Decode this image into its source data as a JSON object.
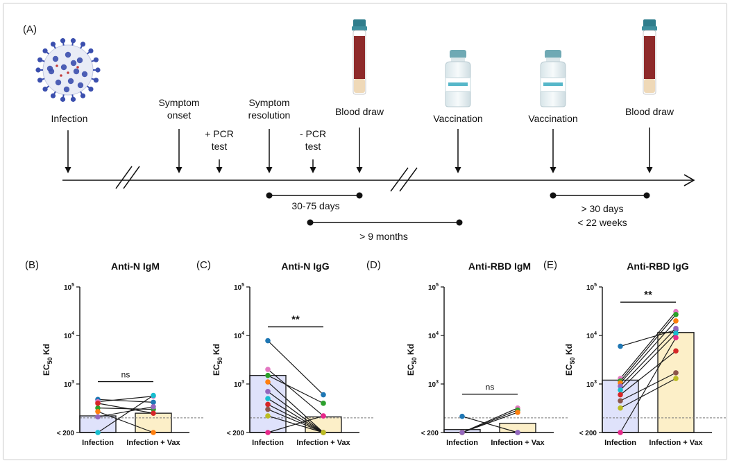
{
  "timeline": {
    "panel_label": "(A)",
    "events": [
      {
        "label": "Infection"
      },
      {
        "label": "Symptom\nonset"
      },
      {
        "label": "+ PCR\ntest"
      },
      {
        "label": "Symptom\nresolution"
      },
      {
        "label": "- PCR\ntest"
      },
      {
        "label": "Blood draw"
      },
      {
        "label": "Vaccination"
      },
      {
        "label": "Vaccination"
      },
      {
        "label": "Blood draw"
      }
    ],
    "intervals": [
      {
        "label": "30-75 days"
      },
      {
        "label": "> 9 months"
      },
      {
        "label": "> 30 days\n< 22 weeks"
      }
    ]
  },
  "colors": {
    "infection_bar": "#dfe2fb",
    "vax_bar": "#fcefc8",
    "virus": "#3b4fae",
    "blood": "#8e2a2a",
    "tube_cap": "#2f7d8c",
    "vial_cap": "#6fa9b4",
    "vial_label": "#56b7c9",
    "point_colors": [
      "#1f77b4",
      "#e377c2",
      "#2ca02c",
      "#ff7f0e",
      "#9467bd",
      "#17becf",
      "#d62728",
      "#8c564b",
      "#bcbd22",
      "#e7298a"
    ]
  },
  "chart_data": [
    {
      "panel": "(B)",
      "type": "bar",
      "title": "Anti-N IgM",
      "ylabel": "EC50 Kd",
      "ylabel_main": "EC",
      "ylabel_sub": "50",
      "ylabel_tail": " Kd",
      "yscale": "log",
      "ylim": [
        100,
        100000
      ],
      "yticks": [
        {
          "value": 100,
          "label": "< 200"
        },
        {
          "value": 1000,
          "base": "10",
          "exp": "3"
        },
        {
          "value": 10000,
          "base": "10",
          "exp": "4"
        },
        {
          "value": 100000,
          "base": "10",
          "exp": "5"
        }
      ],
      "threshold": 200,
      "categories": [
        "Infection",
        "Infection + Vax"
      ],
      "values": [
        220,
        250
      ],
      "pairs": [
        [
          480,
          420
        ],
        [
          430,
          560
        ],
        [
          320,
          300
        ],
        [
          270,
          100
        ],
        [
          210,
          340
        ],
        [
          100,
          580
        ],
        [
          400,
          250
        ]
      ],
      "significance": "ns"
    },
    {
      "panel": "(C)",
      "type": "bar",
      "title": "Anti-N IgG",
      "ylabel": "EC50 Kd",
      "ylabel_main": "EC",
      "ylabel_sub": "50",
      "ylabel_tail": " Kd",
      "yscale": "log",
      "ylim": [
        100,
        100000
      ],
      "yticks": [
        {
          "value": 100,
          "label": "< 200"
        },
        {
          "value": 1000,
          "base": "10",
          "exp": "3"
        },
        {
          "value": 10000,
          "base": "10",
          "exp": "4"
        },
        {
          "value": 100000,
          "base": "10",
          "exp": "5"
        }
      ],
      "threshold": 200,
      "categories": [
        "Infection",
        "Infection + Vax"
      ],
      "values": [
        1500,
        210
      ],
      "pairs": [
        [
          7800,
          600
        ],
        [
          2000,
          220
        ],
        [
          1500,
          400
        ],
        [
          1100,
          100
        ],
        [
          700,
          100
        ],
        [
          500,
          100
        ],
        [
          380,
          100
        ],
        [
          300,
          100
        ],
        [
          220,
          100
        ],
        [
          100,
          220
        ]
      ],
      "significance": "**"
    },
    {
      "panel": "(D)",
      "type": "bar",
      "title": "Anti-RBD IgM",
      "ylabel": "EC50 Kd",
      "ylabel_main": "EC",
      "ylabel_sub": "50",
      "ylabel_tail": " Kd",
      "yscale": "log",
      "ylim": [
        100,
        100000
      ],
      "yticks": [
        {
          "value": 100,
          "label": "< 200"
        },
        {
          "value": 1000,
          "base": "10",
          "exp": "3"
        },
        {
          "value": 10000,
          "base": "10",
          "exp": "4"
        },
        {
          "value": 100000,
          "base": "10",
          "exp": "5"
        }
      ],
      "threshold": 200,
      "categories": [
        "Infection",
        "Infection + Vax"
      ],
      "values": [
        115,
        155
      ],
      "pairs": [
        [
          215,
          100
        ],
        [
          100,
          320
        ],
        [
          100,
          290
        ],
        [
          100,
          260
        ],
        [
          100,
          100
        ]
      ],
      "significance": "ns"
    },
    {
      "panel": "(E)",
      "type": "bar",
      "title": "Anti-RBD IgG",
      "ylabel": "EC50 Kd",
      "ylabel_main": "EC",
      "ylabel_sub": "50",
      "ylabel_tail": " Kd",
      "yscale": "log",
      "ylim": [
        100,
        100000
      ],
      "yticks": [
        {
          "value": 100,
          "label": "< 200"
        },
        {
          "value": 1000,
          "base": "10",
          "exp": "3"
        },
        {
          "value": 10000,
          "base": "10",
          "exp": "4"
        },
        {
          "value": 100000,
          "base": "10",
          "exp": "5"
        }
      ],
      "threshold": 200,
      "categories": [
        "Infection",
        "Infection + Vax"
      ],
      "values": [
        1200,
        11500
      ],
      "pairs": [
        [
          6000,
          13000
        ],
        [
          1300,
          31000
        ],
        [
          1150,
          27000
        ],
        [
          1050,
          20000
        ],
        [
          900,
          14000
        ],
        [
          750,
          11000
        ],
        [
          600,
          4800
        ],
        [
          450,
          1700
        ],
        [
          320,
          1300
        ],
        [
          100,
          9000
        ]
      ],
      "significance": "**"
    }
  ]
}
